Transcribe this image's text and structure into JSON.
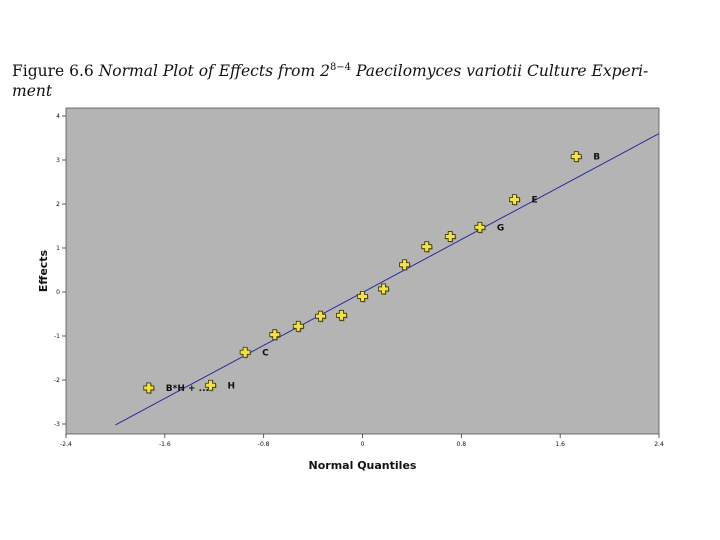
{
  "caption": {
    "prefix": "Figure 6.6 ",
    "title_before": "Normal Plot of Effects from 2",
    "exponent": "8−4",
    "title_after": " Paecilomyces variotii Culture Experi-",
    "title_cont": "ment"
  },
  "chart_data": {
    "type": "scatter",
    "xlabel": "Normal Quantiles",
    "ylabel": "Effects",
    "xlim": [
      -2.4,
      2.4
    ],
    "ylim": [
      -3,
      4
    ],
    "xticks": [
      -2.4,
      -1.6,
      -0.8,
      0,
      0.8,
      1.6,
      2.4
    ],
    "xtick_labels": [
      "-2.4",
      "-1.6",
      "-0.8",
      "0",
      "0.8",
      "1.6",
      "2.4"
    ],
    "yticks": [
      -3,
      -2,
      -1,
      0,
      1,
      2,
      3,
      4
    ],
    "ytick_labels": [
      "-3",
      "-2",
      "-1",
      "0",
      "1",
      "2",
      "3",
      "4"
    ],
    "grid": false,
    "background": "#b4b4b4",
    "line_color": "#2a2a9e",
    "marker_color": "#f2e24a",
    "fit_line": {
      "x": [
        -2.0,
        2.4
      ],
      "y": [
        -3.02,
        3.6
      ]
    },
    "points": [
      {
        "x": -1.73,
        "y": -2.18,
        "label": "B*H + ..."
      },
      {
        "x": -1.23,
        "y": -2.12,
        "label": "H"
      },
      {
        "x": -0.95,
        "y": -1.37,
        "label": "C"
      },
      {
        "x": -0.71,
        "y": -0.97,
        "label": ""
      },
      {
        "x": -0.52,
        "y": -0.78,
        "label": ""
      },
      {
        "x": -0.34,
        "y": -0.55,
        "label": ""
      },
      {
        "x": -0.17,
        "y": -0.53,
        "label": ""
      },
      {
        "x": 0.0,
        "y": -0.1,
        "label": ""
      },
      {
        "x": 0.17,
        "y": 0.07,
        "label": ""
      },
      {
        "x": 0.34,
        "y": 0.62,
        "label": ""
      },
      {
        "x": 0.52,
        "y": 1.03,
        "label": ""
      },
      {
        "x": 0.71,
        "y": 1.26,
        "label": ""
      },
      {
        "x": 0.95,
        "y": 1.47,
        "label": "G"
      },
      {
        "x": 1.23,
        "y": 2.1,
        "label": "E"
      },
      {
        "x": 1.73,
        "y": 3.08,
        "label": "B"
      }
    ]
  }
}
